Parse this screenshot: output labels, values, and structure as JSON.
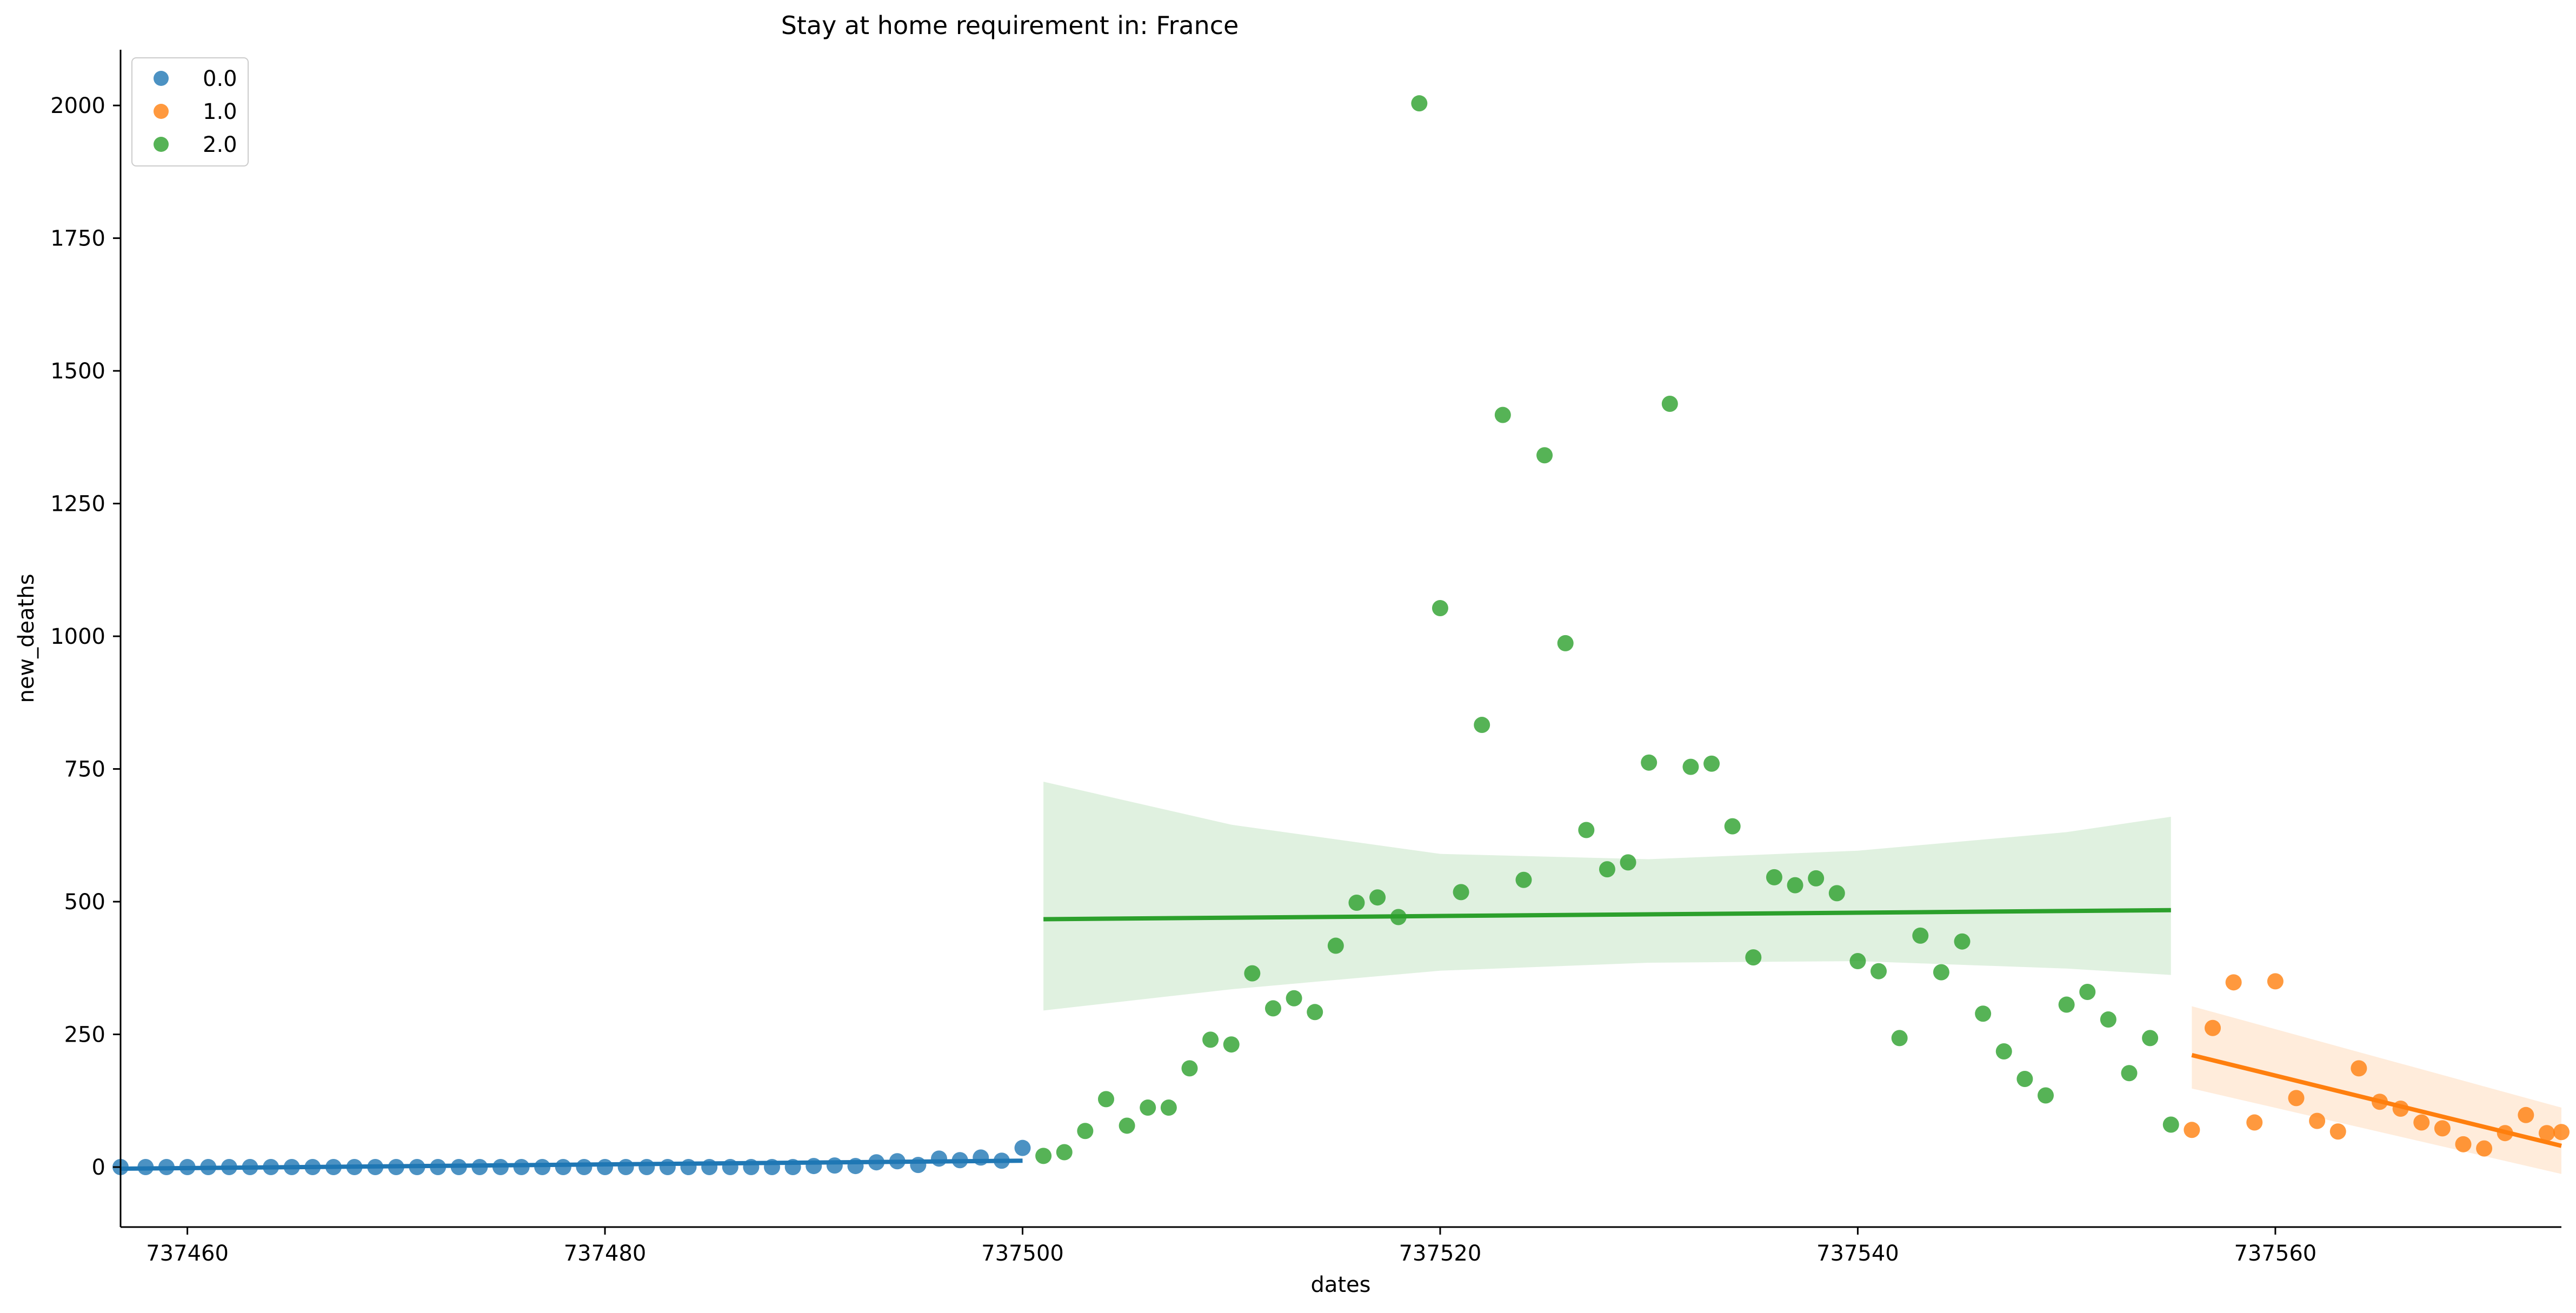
{
  "chart_data": {
    "type": "scatter",
    "title": "Stay at home requirement in: France",
    "xlabel": "dates",
    "ylabel": "new_deaths",
    "xlim": [
      737456.8,
      737573.7
    ],
    "ylim": [
      -113,
      2105
    ],
    "xticks": [
      737460,
      737480,
      737500,
      737520,
      737540,
      737560
    ],
    "yticks": [
      0,
      250,
      500,
      750,
      1000,
      1250,
      1500,
      1750,
      2000
    ],
    "grid": false,
    "legend_position": "top-left",
    "series": [
      {
        "name": "0.0",
        "color": "#1f77b4",
        "x": [
          737456.8,
          737458,
          737459,
          737460,
          737461,
          737462,
          737463,
          737464,
          737465,
          737466,
          737467,
          737468,
          737469,
          737470,
          737471,
          737472,
          737473,
          737474,
          737475,
          737476,
          737477,
          737478,
          737479,
          737480,
          737481,
          737482,
          737483,
          737484,
          737485,
          737486,
          737487,
          737488,
          737489,
          737490,
          737491,
          737492,
          737493,
          737494,
          737495,
          737496,
          737497,
          737498,
          737499,
          737500
        ],
        "y": [
          0,
          0,
          0,
          0,
          0,
          0,
          0,
          0,
          0,
          0,
          0,
          0,
          0,
          0,
          0,
          0,
          0,
          0,
          0,
          0,
          0,
          0,
          0,
          0,
          0,
          0,
          0,
          0,
          0,
          0,
          0,
          0,
          0,
          2,
          3,
          2,
          9,
          11,
          4,
          16,
          13,
          18,
          12,
          36
        ],
        "fit": {
          "x": [
            737456.8,
            737500
          ],
          "y": [
            -3,
            12
          ]
        },
        "band": null
      },
      {
        "name": "1.0",
        "color": "#ff7f0e",
        "x": [
          737556,
          737557,
          737558,
          737559,
          737560,
          737561,
          737562,
          737563,
          737564,
          737565,
          737566,
          737567,
          737568,
          737569,
          737570,
          737571,
          737572,
          737573,
          737573.7
        ],
        "y": [
          70,
          262,
          348,
          84,
          350,
          130,
          87,
          67,
          186,
          123,
          110,
          84,
          73,
          43,
          35,
          64,
          98,
          64,
          66
        ],
        "fit": {
          "x": [
            737556,
            737573.7
          ],
          "y": [
            211,
            40
          ]
        },
        "band": {
          "x": [
            737556,
            737573.7
          ],
          "upper": [
            303,
            112
          ],
          "lower": [
            148,
            -13
          ]
        }
      },
      {
        "name": "2.0",
        "color": "#2ca02c",
        "x": [
          737501,
          737502,
          737503,
          737504,
          737505,
          737506,
          737507,
          737508,
          737509,
          737510,
          737511,
          737512,
          737513,
          737514,
          737515,
          737516,
          737517,
          737518,
          737519,
          737520,
          737521,
          737522,
          737523,
          737524,
          737525,
          737526,
          737527,
          737528,
          737529,
          737530,
          737531,
          737532,
          737533,
          737534,
          737535,
          737536,
          737537,
          737538,
          737539,
          737540,
          737541,
          737542,
          737543,
          737544,
          737545,
          737546,
          737547,
          737548,
          737549,
          737550,
          737551,
          737552,
          737553,
          737554,
          737555
        ],
        "y": [
          21,
          28,
          68,
          128,
          78,
          112,
          112,
          186,
          240,
          231,
          365,
          299,
          318,
          292,
          417,
          498,
          508,
          471,
          2004,
          1053,
          518,
          833,
          1417,
          541,
          1341,
          987,
          635,
          561,
          574,
          762,
          1438,
          754,
          760,
          642,
          395,
          546,
          531,
          544,
          516,
          388,
          369,
          243,
          436,
          367,
          425,
          289,
          218,
          166,
          135,
          306,
          330,
          278,
          177,
          243,
          80
        ],
        "fit": {
          "x": [
            737501,
            737555
          ],
          "y": [
            467,
            484
          ]
        },
        "band": {
          "x": [
            737501,
            737510,
            737520,
            737530,
            737540,
            737550,
            737555
          ],
          "upper": [
            726,
            645,
            590,
            580,
            596,
            631,
            660
          ],
          "lower": [
            295,
            335,
            370,
            385,
            388,
            374,
            362
          ]
        }
      }
    ]
  }
}
